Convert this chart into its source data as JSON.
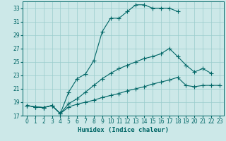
{
  "xlabel": "Humidex (Indice chaleur)",
  "ylabel": "",
  "bg_color": "#cce8e8",
  "grid_color": "#99cccc",
  "line_color": "#006666",
  "xlim": [
    -0.5,
    23.5
  ],
  "ylim": [
    17,
    34
  ],
  "yticks": [
    17,
    19,
    21,
    23,
    25,
    27,
    29,
    31,
    33
  ],
  "xticks": [
    0,
    1,
    2,
    3,
    4,
    5,
    6,
    7,
    8,
    9,
    10,
    11,
    12,
    13,
    14,
    15,
    16,
    17,
    18,
    19,
    20,
    21,
    22,
    23
  ],
  "series": [
    {
      "x": [
        0,
        1,
        2,
        3,
        4,
        5,
        6,
        7,
        8,
        9,
        10,
        11,
        12,
        13,
        14,
        15,
        16,
        17,
        18
      ],
      "y": [
        18.5,
        18.3,
        18.2,
        18.5,
        17.3,
        20.5,
        22.5,
        23.2,
        25.2,
        29.5,
        31.5,
        31.5,
        32.5,
        33.5,
        33.5,
        33.0,
        33.0,
        33.0,
        32.5
      ],
      "marker": "+",
      "markersize": 4
    },
    {
      "x": [
        0,
        1,
        2,
        3,
        4,
        5,
        6,
        7,
        8,
        9,
        10,
        11,
        12,
        13,
        14,
        15,
        16,
        17,
        18,
        19,
        20,
        21,
        22
      ],
      "y": [
        18.5,
        18.3,
        18.2,
        18.5,
        17.3,
        18.8,
        19.5,
        20.5,
        21.5,
        22.5,
        23.3,
        24.0,
        24.5,
        25.0,
        25.5,
        25.8,
        26.2,
        27.0,
        25.8,
        24.5,
        23.5,
        24.0,
        23.3
      ],
      "marker": "+",
      "markersize": 4
    },
    {
      "x": [
        0,
        1,
        2,
        3,
        4,
        5,
        6,
        7,
        8,
        9,
        10,
        11,
        12,
        13,
        14,
        15,
        16,
        17,
        18,
        19,
        20,
        21,
        22,
        23
      ],
      "y": [
        18.5,
        18.3,
        18.2,
        18.5,
        17.3,
        18.3,
        18.7,
        19.0,
        19.3,
        19.7,
        20.0,
        20.3,
        20.7,
        21.0,
        21.3,
        21.7,
        22.0,
        22.3,
        22.7,
        21.5,
        21.3,
        21.5,
        21.5,
        21.5
      ],
      "marker": "+",
      "markersize": 4
    }
  ]
}
